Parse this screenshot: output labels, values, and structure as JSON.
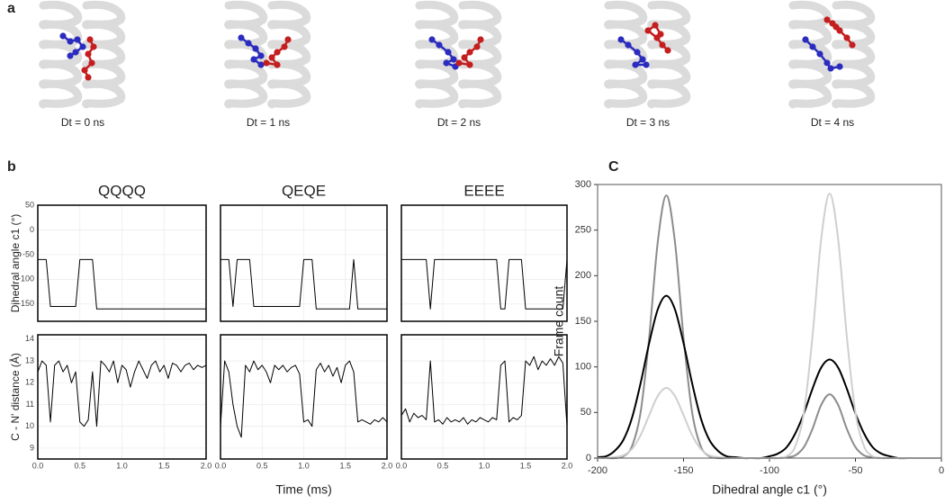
{
  "panel_labels": [
    "a",
    "b",
    "C"
  ],
  "snapshots": [
    "Dt = 0 ns",
    "Dt = 1 ns",
    "Dt = 2 ns",
    "Dt = 3 ns",
    "Dt = 4 ns"
  ],
  "chart_data": [
    {
      "type": "line",
      "title": "QQQQ",
      "ylabel": "Dihedral angle c1 (°)",
      "color": "#000000",
      "x": [
        0,
        0.05,
        0.1,
        0.15,
        0.2,
        0.25,
        0.3,
        0.35,
        0.4,
        0.45,
        0.5,
        0.55,
        0.6,
        0.65,
        0.7,
        0.75,
        0.8,
        0.85,
        0.9,
        0.95,
        1,
        1.05,
        1.1,
        1.15,
        1.2,
        1.25,
        1.3,
        1.35,
        1.4,
        1.45,
        1.5,
        1.55,
        1.6,
        1.65,
        1.7,
        1.75,
        1.8,
        1.85,
        1.9,
        1.95,
        2
      ],
      "values": [
        -60,
        -60,
        -60,
        -155,
        -155,
        -155,
        -155,
        -155,
        -155,
        -155,
        -60,
        -60,
        -60,
        -60,
        -160,
        -160,
        -160,
        -160,
        -160,
        -160,
        -160,
        -160,
        -160,
        -160,
        -160,
        -160,
        -160,
        -160,
        -160,
        -160,
        -160,
        -160,
        -160,
        -160,
        -160,
        -160,
        -160,
        -160,
        -160,
        -160,
        -160
      ],
      "xlim": [
        0,
        2
      ],
      "ylim": [
        -185,
        50
      ],
      "xticks": [
        {
          "value": 0,
          "label": "0.0"
        },
        {
          "value": 0.5,
          "label": "0.5"
        },
        {
          "value": 1,
          "label": "1.0"
        },
        {
          "value": 1.5,
          "label": "1.5"
        },
        {
          "value": 2,
          "label": "2.0"
        }
      ],
      "yticks": [
        -150,
        -100,
        -50,
        0,
        50
      ],
      "grid": true,
      "xtick_labels": false,
      "ytick_labels": true
    },
    {
      "type": "line",
      "title": "QEQE",
      "color": "#000000",
      "x": [
        0,
        0.05,
        0.1,
        0.15,
        0.2,
        0.25,
        0.3,
        0.35,
        0.4,
        0.45,
        0.5,
        0.55,
        0.6,
        0.65,
        0.7,
        0.75,
        0.8,
        0.85,
        0.9,
        0.95,
        1,
        1.05,
        1.1,
        1.15,
        1.2,
        1.25,
        1.3,
        1.35,
        1.4,
        1.45,
        1.5,
        1.55,
        1.6,
        1.65,
        1.7,
        1.75,
        1.8,
        1.85,
        1.9,
        1.95,
        2
      ],
      "values": [
        -60,
        -60,
        -60,
        -155,
        -60,
        -60,
        -60,
        -60,
        -155,
        -155,
        -155,
        -155,
        -155,
        -155,
        -155,
        -155,
        -155,
        -155,
        -155,
        -155,
        -60,
        -60,
        -60,
        -160,
        -160,
        -160,
        -160,
        -160,
        -160,
        -160,
        -160,
        -160,
        -60,
        -160,
        -160,
        -160,
        -160,
        -160,
        -160,
        -160,
        -160
      ],
      "xlim": [
        0,
        2
      ],
      "ylim": [
        -185,
        50
      ],
      "xticks": [
        {
          "value": 0,
          "label": "0.0"
        },
        {
          "value": 0.5,
          "label": "0.5"
        },
        {
          "value": 1,
          "label": "1.0"
        },
        {
          "value": 1.5,
          "label": "1.5"
        },
        {
          "value": 2,
          "label": "2.0"
        }
      ],
      "yticks": [
        -150,
        -100,
        -50,
        0,
        50
      ],
      "grid": true,
      "xtick_labels": false,
      "ytick_labels": false
    },
    {
      "type": "line",
      "title": "EEEE",
      "color": "#000000",
      "x": [
        0,
        0.05,
        0.1,
        0.15,
        0.2,
        0.25,
        0.3,
        0.35,
        0.4,
        0.45,
        0.5,
        0.55,
        0.6,
        0.65,
        0.7,
        0.75,
        0.8,
        0.85,
        0.9,
        0.95,
        1,
        1.05,
        1.1,
        1.15,
        1.2,
        1.25,
        1.3,
        1.35,
        1.4,
        1.45,
        1.5,
        1.55,
        1.6,
        1.65,
        1.7,
        1.75,
        1.8,
        1.85,
        1.9,
        1.95,
        2
      ],
      "values": [
        -60,
        -60,
        -60,
        -60,
        -60,
        -60,
        -60,
        -160,
        -60,
        -60,
        -60,
        -60,
        -60,
        -60,
        -60,
        -60,
        -60,
        -60,
        -60,
        -60,
        -60,
        -60,
        -60,
        -60,
        -160,
        -160,
        -60,
        -60,
        -60,
        -60,
        -160,
        -160,
        -160,
        -160,
        -160,
        -160,
        -160,
        -160,
        -160,
        -160,
        -60
      ],
      "xlim": [
        0,
        2
      ],
      "ylim": [
        -185,
        50
      ],
      "xticks": [
        {
          "value": 0,
          "label": "0.0"
        },
        {
          "value": 0.5,
          "label": "0.5"
        },
        {
          "value": 1,
          "label": "1.0"
        },
        {
          "value": 1.5,
          "label": "1.5"
        },
        {
          "value": 2,
          "label": "2.0"
        }
      ],
      "yticks": [
        -150,
        -100,
        -50,
        0,
        50
      ],
      "grid": true,
      "xtick_labels": false,
      "ytick_labels": false
    },
    {
      "type": "line",
      "ylabel": "C - N' distance (Å)",
      "color": "#000000",
      "x": [
        0,
        0.05,
        0.1,
        0.15,
        0.2,
        0.25,
        0.3,
        0.35,
        0.4,
        0.45,
        0.5,
        0.55,
        0.6,
        0.65,
        0.7,
        0.75,
        0.8,
        0.85,
        0.9,
        0.95,
        1,
        1.05,
        1.1,
        1.15,
        1.2,
        1.25,
        1.3,
        1.35,
        1.4,
        1.45,
        1.5,
        1.55,
        1.6,
        1.65,
        1.7,
        1.75,
        1.8,
        1.85,
        1.9,
        1.95,
        2
      ],
      "values": [
        12.5,
        13,
        12.8,
        10.2,
        12.8,
        13,
        12.5,
        12.8,
        12,
        12.5,
        10.2,
        10,
        10.3,
        12.5,
        10,
        13,
        12.8,
        12.5,
        13,
        12,
        12.8,
        12.6,
        11.8,
        12.5,
        13,
        12.6,
        12.2,
        12.8,
        13,
        12.5,
        12.8,
        12.2,
        12.9,
        12.8,
        12.5,
        12.8,
        12.9,
        12.6,
        12.8,
        12.7,
        12.8
      ],
      "xlim": [
        0,
        2
      ],
      "ylim": [
        8.5,
        14.2
      ],
      "xticks": [
        {
          "value": 0,
          "label": "0.0"
        },
        {
          "value": 0.5,
          "label": "0.5"
        },
        {
          "value": 1,
          "label": "1.0"
        },
        {
          "value": 1.5,
          "label": "1.5"
        },
        {
          "value": 2,
          "label": "2.0"
        }
      ],
      "yticks": [
        9,
        10,
        11,
        12,
        13,
        14
      ],
      "grid": true,
      "xtick_labels": true,
      "ytick_labels": true
    },
    {
      "type": "line",
      "xlabel": "Time (ms)",
      "color": "#000000",
      "x": [
        0,
        0.05,
        0.1,
        0.15,
        0.2,
        0.25,
        0.3,
        0.35,
        0.4,
        0.45,
        0.5,
        0.55,
        0.6,
        0.65,
        0.7,
        0.75,
        0.8,
        0.85,
        0.9,
        0.95,
        1,
        1.05,
        1.1,
        1.15,
        1.2,
        1.25,
        1.3,
        1.35,
        1.4,
        1.45,
        1.5,
        1.55,
        1.6,
        1.65,
        1.7,
        1.75,
        1.8,
        1.85,
        1.9,
        1.95,
        2
      ],
      "values": [
        10,
        13,
        12.5,
        11,
        10,
        9.5,
        12.8,
        12.5,
        13,
        12.6,
        12.8,
        12.5,
        12,
        12.8,
        12.6,
        12.8,
        12.5,
        12.7,
        12.8,
        12.4,
        10.2,
        10.3,
        10,
        12.6,
        12.9,
        12.5,
        12.8,
        12.3,
        12.7,
        12,
        12.8,
        13,
        12.5,
        10.2,
        10.3,
        10.2,
        10.1,
        10.3,
        10.2,
        10.4,
        10.2
      ],
      "xlim": [
        0,
        2
      ],
      "ylim": [
        8.5,
        14.2
      ],
      "xticks": [
        {
          "value": 0,
          "label": "0.0"
        },
        {
          "value": 0.5,
          "label": "0.5"
        },
        {
          "value": 1,
          "label": "1.0"
        },
        {
          "value": 1.5,
          "label": "1.5"
        },
        {
          "value": 2,
          "label": "2.0"
        }
      ],
      "yticks": [
        9,
        10,
        11,
        12,
        13,
        14
      ],
      "grid": true,
      "xtick_labels": true,
      "ytick_labels": false
    },
    {
      "type": "line",
      "color": "#000000",
      "x": [
        0,
        0.05,
        0.1,
        0.15,
        0.2,
        0.25,
        0.3,
        0.35,
        0.4,
        0.45,
        0.5,
        0.55,
        0.6,
        0.65,
        0.7,
        0.75,
        0.8,
        0.85,
        0.9,
        0.95,
        1,
        1.05,
        1.1,
        1.15,
        1.2,
        1.25,
        1.3,
        1.35,
        1.4,
        1.45,
        1.5,
        1.55,
        1.6,
        1.65,
        1.7,
        1.75,
        1.8,
        1.85,
        1.9,
        1.95,
        2
      ],
      "values": [
        10.5,
        10.8,
        10.2,
        10.6,
        10.4,
        10.5,
        10.3,
        13,
        10.2,
        10.3,
        10.1,
        10.4,
        10.2,
        10.3,
        10.2,
        10.4,
        10.1,
        10.3,
        10.2,
        10.4,
        10.3,
        10.2,
        10.4,
        10.3,
        12.8,
        13,
        10.2,
        10.4,
        10.3,
        10.5,
        13,
        12.8,
        13.2,
        12.6,
        13,
        12.8,
        13.1,
        12.8,
        13.2,
        12.9,
        10
      ],
      "xlim": [
        0,
        2
      ],
      "ylim": [
        8.5,
        14.2
      ],
      "xticks": [
        {
          "value": 0,
          "label": "0.0"
        },
        {
          "value": 0.5,
          "label": "0.5"
        },
        {
          "value": 1,
          "label": "1.0"
        },
        {
          "value": 1.5,
          "label": "1.5"
        },
        {
          "value": 2,
          "label": "2.0"
        }
      ],
      "yticks": [
        9,
        10,
        11,
        12,
        13,
        14
      ],
      "grid": true,
      "xtick_labels": true,
      "ytick_labels": false
    },
    {
      "type": "line",
      "xlabel": "Dihedral angle c1 (°)",
      "ylabel": "Frame count",
      "x": [
        -200,
        -195,
        -190,
        -185,
        -180,
        -175,
        -170,
        -165,
        -160,
        -155,
        -150,
        -145,
        -140,
        -135,
        -130,
        -125,
        -120,
        -115,
        -110,
        -105,
        -100,
        -95,
        -90,
        -85,
        -80,
        -75,
        -70,
        -65,
        -60,
        -55,
        -50,
        -45,
        -40,
        -35,
        -30,
        -25,
        -20,
        -15,
        -10,
        -5,
        0
      ],
      "series": [
        {
          "color": "#8c8c8c",
          "values": [
            0,
            0,
            0,
            2,
            13,
            50,
            132,
            237,
            288,
            237,
            132,
            50,
            13,
            2,
            0,
            0,
            0,
            0,
            0,
            0,
            0,
            0,
            1,
            3,
            12,
            32,
            58,
            70,
            58,
            32,
            12,
            3,
            1,
            0,
            0,
            0,
            0,
            0,
            0,
            0,
            0
          ]
        },
        {
          "color": "#000000",
          "values": [
            1,
            2,
            8,
            20,
            44,
            82,
            126,
            163,
            178,
            163,
            126,
            82,
            44,
            20,
            8,
            2,
            1,
            0,
            0,
            0,
            2,
            5,
            12,
            27,
            49,
            76,
            99,
            108,
            99,
            76,
            49,
            27,
            12,
            5,
            2,
            0,
            0,
            0,
            0,
            0,
            0
          ]
        },
        {
          "color": "#cfcfcf",
          "values": [
            0,
            0,
            1,
            3,
            10,
            25,
            47,
            68,
            77,
            68,
            47,
            25,
            10,
            3,
            1,
            0,
            0,
            0,
            0,
            0,
            0,
            0,
            2,
            13,
            50,
            133,
            239,
            290,
            239,
            133,
            50,
            13,
            2,
            0,
            0,
            0,
            0,
            0,
            0,
            0,
            0
          ]
        }
      ],
      "xlim": [
        -200,
        0
      ],
      "ylim": [
        0,
        300
      ],
      "xticks": [
        -200,
        -150,
        -100,
        -50,
        0
      ],
      "yticks": [
        0,
        50,
        100,
        150,
        200,
        250,
        300
      ],
      "grid": false,
      "xtick_labels": true,
      "ytick_labels": true
    }
  ]
}
